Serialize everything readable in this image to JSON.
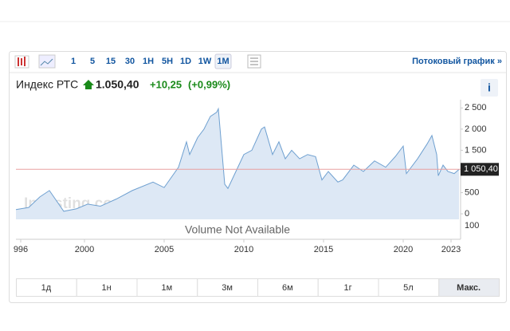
{
  "toolbar": {
    "intervals": [
      "1",
      "5",
      "15",
      "30",
      "1H",
      "5H",
      "1D",
      "1W",
      "1M"
    ],
    "selected": "1M",
    "streaming_link": "Потоковый график"
  },
  "header": {
    "name": "Индекс РТС",
    "price": "1.050,40",
    "change": "+10,25",
    "change_pct": "(+0,99%)"
  },
  "chart_data": {
    "type": "area",
    "color": "#6fa0d0",
    "fill": "#dde8f5",
    "watermark": "Investing.com",
    "volume_note": "Volume Not Available",
    "volume_tick": "100",
    "current_value": 1050.4,
    "current_label": "1 050,40",
    "x": [
      1995.7,
      1996.5,
      1997.2,
      1997.8,
      1998.7,
      1999.5,
      2000.2,
      2001,
      2002,
      2003,
      2004.3,
      2005,
      2005.9,
      2006.4,
      2006.6,
      2007.1,
      2007.5,
      2007.9,
      2008.3,
      2008.4,
      2008.8,
      2009.0,
      2009.5,
      2010,
      2010.5,
      2011.1,
      2011.3,
      2011.8,
      2012.2,
      2012.6,
      2013,
      2013.5,
      2014,
      2014.5,
      2014.9,
      2015.3,
      2015.9,
      2016.2,
      2016.9,
      2017.5,
      2018.2,
      2018.9,
      2019.5,
      2020.0,
      2020.2,
      2020.9,
      2021.5,
      2021.8,
      2022.1,
      2022.2,
      2022.5,
      2022.8,
      2023.2,
      2023.5
    ],
    "values": [
      100,
      150,
      400,
      550,
      60,
      120,
      230,
      180,
      350,
      550,
      750,
      620,
      1100,
      1700,
      1400,
      1800,
      2000,
      2300,
      2400,
      2480,
      700,
      600,
      1000,
      1400,
      1500,
      2000,
      2050,
      1400,
      1700,
      1300,
      1500,
      1300,
      1400,
      1350,
      800,
      1000,
      750,
      800,
      1150,
      1000,
      1250,
      1100,
      1350,
      1600,
      950,
      1300,
      1650,
      1850,
      1400,
      900,
      1150,
      1000,
      950,
      1050
    ],
    "xlim": [
      1995.7,
      2023.6
    ],
    "xticks": [
      {
        "value": 1996,
        "label": "996"
      },
      2000,
      2005,
      2010,
      2015,
      2020,
      2023
    ],
    "ylim": [
      -130,
      2600
    ],
    "yticks": [
      0,
      500,
      {
        "value": 1000,
        "label": "1 000"
      },
      {
        "value": 1500,
        "label": "1 500"
      },
      {
        "value": 2000,
        "label": "2 000"
      },
      {
        "value": 2500,
        "label": "2 500"
      }
    ]
  },
  "ranges": [
    "1д",
    "1н",
    "1м",
    "3м",
    "6м",
    "1г",
    "5л",
    "Макс."
  ],
  "selected_range": "Макс."
}
